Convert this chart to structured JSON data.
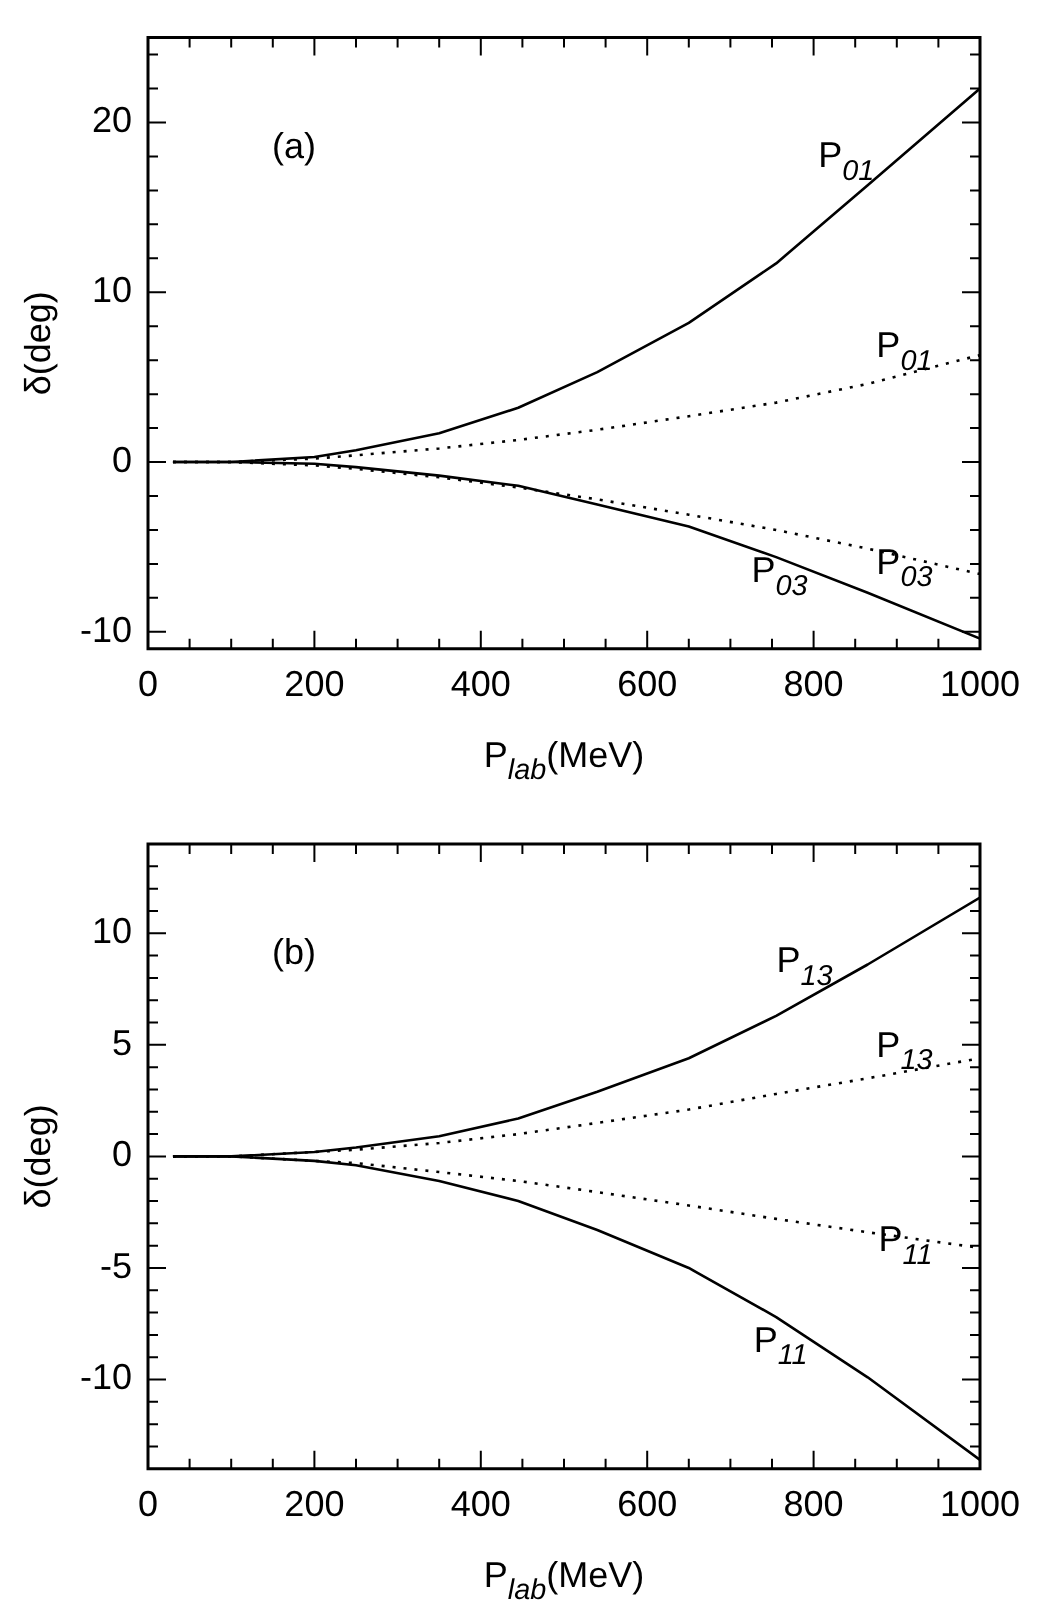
{
  "chart_data": [
    {
      "type": "line",
      "ylabel": "δ(deg)",
      "xlim": [
        0,
        1000
      ],
      "ylim": [
        -11,
        25
      ],
      "xticks": [
        0,
        {
          "value": 50,
          "label": null
        },
        {
          "value": 100,
          "label": null
        },
        {
          "value": 150,
          "label": null
        },
        200,
        {
          "value": 250,
          "label": null
        },
        {
          "value": 300,
          "label": null
        },
        {
          "value": 350,
          "label": null
        },
        400,
        {
          "value": 450,
          "label": null
        },
        {
          "value": 500,
          "label": null
        },
        {
          "value": 550,
          "label": null
        },
        600,
        {
          "value": 650,
          "label": null
        },
        {
          "value": 700,
          "label": null
        },
        {
          "value": 750,
          "label": null
        },
        800,
        {
          "value": 850,
          "label": null
        },
        {
          "value": 900,
          "label": null
        },
        {
          "value": 950,
          "label": null
        },
        1000
      ],
      "yticks": [
        -10,
        {
          "value": -8,
          "label": null
        },
        {
          "value": -6,
          "label": null
        },
        {
          "value": -4,
          "label": null
        },
        {
          "value": -2,
          "label": null
        },
        0,
        {
          "value": 2,
          "label": null
        },
        {
          "value": 4,
          "label": null
        },
        {
          "value": 6,
          "label": null
        },
        {
          "value": 8,
          "label": null
        },
        10,
        {
          "value": 12,
          "label": null
        },
        {
          "value": 14,
          "label": null
        },
        {
          "value": 16,
          "label": null
        },
        {
          "value": 18,
          "label": null
        },
        20,
        {
          "value": 22,
          "label": null
        },
        {
          "value": 24,
          "label": null
        }
      ],
      "x": [
        30,
        100,
        200,
        250,
        350,
        445,
        540,
        650,
        755,
        865,
        1000
      ],
      "xlabel": "P$_{lab}$(MeV)",
      "grid": false,
      "legend": false,
      "marker": "none",
      "series": [
        {
          "color": "#000000",
          "line_style": "solid",
          "values": [
            0,
            0,
            0.3,
            0.7,
            1.7,
            3.2,
            5.3,
            8.2,
            11.7,
            16.3,
            22.0
          ]
        },
        {
          "color": "#000000",
          "line_style": "dotted",
          "values": [
            0,
            0,
            0.2,
            0.4,
            0.8,
            1.3,
            1.9,
            2.7,
            3.5,
            4.6,
            6.3
          ]
        },
        {
          "color": "#000000",
          "line_style": "solid",
          "values": [
            0,
            0,
            -0.1,
            -0.3,
            -0.8,
            -1.4,
            -2.5,
            -3.8,
            -5.6,
            -7.7,
            -10.4
          ]
        },
        {
          "color": "#000000",
          "line_style": "dotted",
          "values": [
            0,
            0,
            -0.2,
            -0.4,
            -0.9,
            -1.5,
            -2.2,
            -3.1,
            -4.0,
            -5.1,
            -6.6
          ]
        }
      ],
      "annotations": [
        "(a)",
        {
          "text": "P$_{01}$",
          "x": 880,
          "y": 16.9
        },
        {
          "text": "P$_{01}$",
          "x": 950,
          "y": 5.7
        },
        {
          "text": "P$_{03}$",
          "x": 950,
          "y": -6.0
        },
        {
          "text": "P$_{03}$",
          "x": 800,
          "y": -6.5
        }
      ]
    },
    {
      "type": "line",
      "ylabel": "δ(deg)",
      "xlim": [
        0,
        1000
      ],
      "ylim": [
        -14,
        14
      ],
      "xticks": [
        0,
        {
          "value": 50,
          "label": null
        },
        {
          "value": 100,
          "label": null
        },
        {
          "value": 150,
          "label": null
        },
        200,
        {
          "value": 250,
          "label": null
        },
        {
          "value": 300,
          "label": null
        },
        {
          "value": 350,
          "label": null
        },
        400,
        {
          "value": 450,
          "label": null
        },
        {
          "value": 500,
          "label": null
        },
        {
          "value": 550,
          "label": null
        },
        600,
        {
          "value": 650,
          "label": null
        },
        {
          "value": 700,
          "label": null
        },
        {
          "value": 750,
          "label": null
        },
        800,
        {
          "value": 850,
          "label": null
        },
        {
          "value": 900,
          "label": null
        },
        {
          "value": 950,
          "label": null
        },
        1000
      ],
      "yticks": [
        {
          "value": -13,
          "label": null
        },
        {
          "value": -12,
          "label": null
        },
        {
          "value": -11,
          "label": null
        },
        -10,
        {
          "value": -9,
          "label": null
        },
        {
          "value": -8,
          "label": null
        },
        {
          "value": -7,
          "label": null
        },
        {
          "value": -6,
          "label": null
        },
        -5,
        {
          "value": -4,
          "label": null
        },
        {
          "value": -3,
          "label": null
        },
        {
          "value": -2,
          "label": null
        },
        {
          "value": -1,
          "label": null
        },
        0,
        {
          "value": 1,
          "label": null
        },
        {
          "value": 2,
          "label": null
        },
        {
          "value": 3,
          "label": null
        },
        {
          "value": 4,
          "label": null
        },
        5,
        {
          "value": 6,
          "label": null
        },
        {
          "value": 7,
          "label": null
        },
        {
          "value": 8,
          "label": null
        },
        {
          "value": 9,
          "label": null
        },
        10,
        {
          "value": 11,
          "label": null
        },
        {
          "value": 12,
          "label": null
        },
        {
          "value": 13,
          "label": null
        }
      ],
      "x": [
        30,
        100,
        200,
        250,
        350,
        445,
        540,
        650,
        755,
        865,
        1000
      ],
      "xlabel": "P$_{lab}$(MeV)",
      "grid": false,
      "legend": false,
      "marker": "none",
      "series": [
        {
          "color": "#000000",
          "line_style": "solid",
          "values": [
            0,
            0,
            0.2,
            0.4,
            0.9,
            1.7,
            2.9,
            4.4,
            6.3,
            8.6,
            11.6
          ]
        },
        {
          "color": "#000000",
          "line_style": "dotted",
          "values": [
            0,
            0,
            0.2,
            0.3,
            0.6,
            1.0,
            1.5,
            2.1,
            2.8,
            3.5,
            4.4
          ]
        },
        {
          "color": "#000000",
          "line_style": "solid",
          "values": [
            0,
            0,
            -0.2,
            -0.4,
            -1.1,
            -2.0,
            -3.3,
            -5.0,
            -7.2,
            -9.9,
            -13.6
          ]
        },
        {
          "color": "#000000",
          "line_style": "dotted",
          "values": [
            0,
            0,
            -0.2,
            -0.3,
            -0.7,
            -1.1,
            -1.6,
            -2.2,
            -2.8,
            -3.4,
            -4.1
          ]
        }
      ],
      "annotations": [
        "(b)",
        {
          "text": "P$_{13}$",
          "x": 830,
          "y": 7.9
        },
        {
          "text": "P$_{13}$",
          "x": 950,
          "y": 4.1
        },
        {
          "text": "P$_{11}$",
          "x": 950,
          "y": -3.8
        },
        {
          "text": "P$_{11}$",
          "x": 800,
          "y": -8.3
        }
      ]
    }
  ]
}
